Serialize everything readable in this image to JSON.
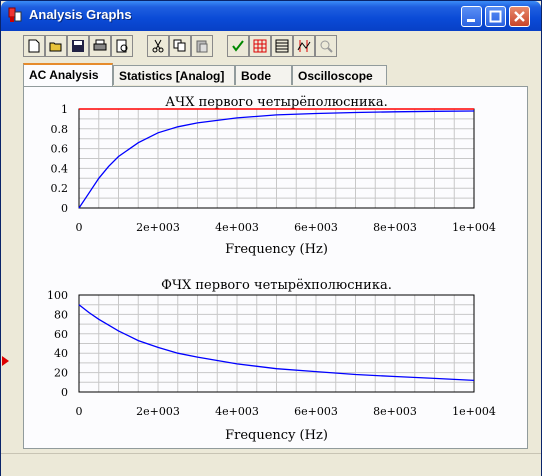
{
  "window": {
    "title": "Analysis Graphs"
  },
  "toolbar": {
    "buttons": [
      "new-icon",
      "open-icon",
      "save-icon",
      "print-icon",
      "print-preview-icon",
      "cut-icon",
      "copy-icon",
      "paste-icon",
      "properties-icon",
      "grid-icon",
      "legend-icon",
      "cursors-icon",
      "zoom-icon"
    ]
  },
  "tabs": [
    {
      "label": "AC Analysis",
      "active": true
    },
    {
      "label": "Statistics [Analog]",
      "active": false
    },
    {
      "label": "Bode",
      "active": false
    },
    {
      "label": "Oscilloscope",
      "active": false
    }
  ],
  "colors": {
    "accent": "#1f5fe0",
    "curve": "#0000ff",
    "reference": "#ff0000"
  },
  "chart_data": [
    {
      "type": "line",
      "title": "АЧХ первого четырёполюсника.",
      "xlabel": "Frequency (Hz)",
      "ylabel": "",
      "xlim": [
        0,
        10000
      ],
      "ylim": [
        0,
        1
      ],
      "x_ticks": [
        "0",
        "2e+003",
        "4e+003",
        "6e+003",
        "8e+003",
        "1e+004"
      ],
      "y_ticks": [
        "0",
        "0.2",
        "0.4",
        "0.6",
        "0.8",
        "1"
      ],
      "grid": true,
      "series": [
        {
          "x": [
            0,
            250,
            500,
            750,
            1000,
            1500,
            2000,
            2500,
            3000,
            4000,
            5000,
            6000,
            7000,
            8000,
            9000,
            10000
          ],
          "y": [
            0,
            0.15,
            0.3,
            0.42,
            0.52,
            0.66,
            0.76,
            0.82,
            0.86,
            0.91,
            0.94,
            0.955,
            0.965,
            0.972,
            0.977,
            0.98
          ],
          "color": "#0000ff"
        },
        {
          "x": [
            0,
            10000
          ],
          "y": [
            1,
            1
          ],
          "color": "#ff0000"
        }
      ]
    },
    {
      "type": "line",
      "title": "ФЧХ первого четырёхполюсника.",
      "xlabel": "Frequency (Hz)",
      "ylabel": "",
      "xlim": [
        0,
        10000
      ],
      "ylim": [
        0,
        100
      ],
      "x_ticks": [
        "0",
        "2e+003",
        "4e+003",
        "6e+003",
        "8e+003",
        "1e+004"
      ],
      "y_ticks": [
        "0",
        "20",
        "40",
        "60",
        "80",
        "100"
      ],
      "grid": true,
      "series": [
        {
          "x": [
            0,
            250,
            500,
            750,
            1000,
            1500,
            2000,
            2500,
            3000,
            4000,
            5000,
            6000,
            7000,
            8000,
            9000,
            10000
          ],
          "y": [
            90,
            82,
            75,
            69,
            63,
            53,
            46,
            40,
            36,
            29,
            24,
            21,
            18,
            16,
            14,
            12
          ],
          "color": "#0000ff"
        }
      ]
    }
  ]
}
